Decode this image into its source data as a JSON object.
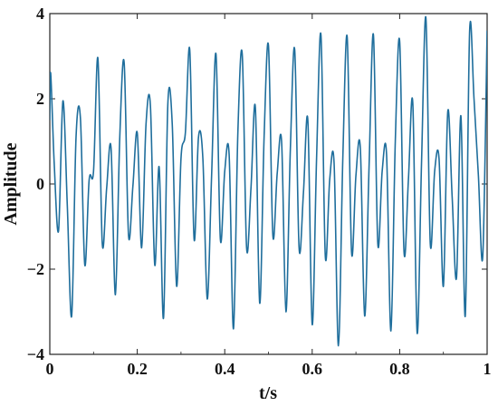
{
  "chart_data": {
    "type": "line",
    "title": "",
    "xlabel": "t/s",
    "ylabel": "Amplitude",
    "xlim": [
      0,
      1
    ],
    "ylim": [
      -4,
      4
    ],
    "xticks": [
      0,
      0.2,
      0.4,
      0.6,
      0.8,
      1
    ],
    "xtick_labels": [
      "0",
      "0.2",
      "0.4",
      "0.6",
      "0.8",
      "1"
    ],
    "yticks": [
      -4,
      -2,
      0,
      2,
      4
    ],
    "ytick_labels": [
      "−4",
      "−2",
      "0",
      "2",
      "4"
    ],
    "grid": false,
    "legend": "none",
    "line_color": "#1f6e9c",
    "series": [
      {
        "x": [
          0,
          0.002,
          0.01,
          0.02,
          0.03,
          0.04,
          0.05,
          0.06,
          0.07,
          0.08,
          0.09,
          0.1,
          0.11,
          0.12,
          0.13,
          0.14,
          0.15,
          0.16,
          0.17,
          0.18,
          0.19,
          0.2,
          0.21,
          0.22,
          0.23,
          0.24,
          0.25,
          0.26,
          0.27,
          0.28,
          0.29,
          0.3,
          0.31,
          0.32,
          0.33,
          0.34,
          0.35,
          0.36,
          0.37,
          0.38,
          0.39,
          0.4,
          0.41,
          0.42,
          0.43,
          0.44,
          0.45,
          0.46,
          0.47,
          0.48,
          0.49,
          0.5,
          0.51,
          0.52,
          0.53,
          0.54,
          0.55,
          0.56,
          0.57,
          0.58,
          0.59,
          0.6,
          0.61,
          0.62,
          0.63,
          0.64,
          0.65,
          0.66,
          0.67,
          0.68,
          0.69,
          0.7,
          0.71,
          0.72,
          0.73,
          0.74,
          0.75,
          0.76,
          0.77,
          0.78,
          0.79,
          0.8,
          0.81,
          0.82,
          0.83,
          0.84,
          0.85,
          0.86,
          0.87,
          0.88,
          0.89,
          0.9,
          0.91,
          0.92,
          0.93,
          0.94,
          0.95,
          0.96,
          0.97,
          0.98,
          0.99,
          1.0
        ],
        "y": [
          1.5,
          2.6,
          0.5,
          -1.1,
          1.95,
          -0.5,
          -3.1,
          1.1,
          1.55,
          -1.9,
          0.1,
          0.3,
          2.95,
          -1.4,
          -0.1,
          0.85,
          -2.6,
          1.1,
          2.85,
          -1.2,
          -0.05,
          1.2,
          -1.5,
          1.4,
          1.85,
          -1.9,
          0.4,
          -3.15,
          1.9,
          1.4,
          -2.4,
          0.6,
          1.2,
          3.15,
          -1.3,
          1.1,
          0.6,
          -2.7,
          0.2,
          3.05,
          -1.3,
          0.3,
          0.7,
          -3.4,
          1.2,
          3.05,
          -1.5,
          -0.1,
          1.8,
          -2.8,
          1.1,
          3.25,
          -1.2,
          0.25,
          1.0,
          -3.0,
          0.8,
          3.15,
          -1.5,
          -0.2,
          1.5,
          -3.3,
          0.6,
          3.5,
          -1.7,
          0.1,
          0.5,
          -3.8,
          0.6,
          3.45,
          -1.6,
          0.2,
          0.85,
          -3.1,
          0.4,
          3.5,
          -1.4,
          0.3,
          0.7,
          -3.45,
          1.0,
          3.35,
          -1.6,
          0.1,
          1.9,
          -3.5,
          0.5,
          3.9,
          -1.4,
          0.3,
          0.6,
          -2.4,
          1.7,
          -0.3,
          -2.2,
          1.6,
          -3.1,
          3.6,
          2.0,
          0.2,
          -1.7,
          3.6
        ]
      }
    ]
  }
}
